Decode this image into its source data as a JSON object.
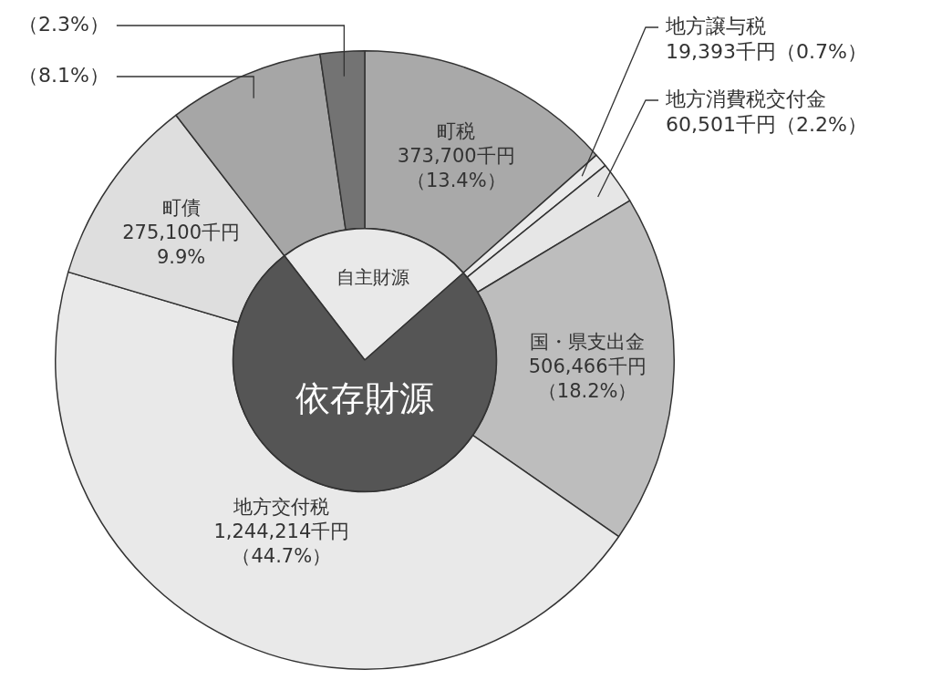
{
  "chart_data": [
    {
      "type": "donut",
      "categories": [
        "町税",
        "地方譲与税",
        "地方消費税交付金",
        "国・県支出金",
        "地方交付税",
        "町債",
        null,
        null
      ],
      "values": [
        13.4,
        0.7,
        2.2,
        18.2,
        44.7,
        9.9,
        8.1,
        2.3
      ],
      "colors": [
        "#a9a9a9",
        "#ebebeb",
        "#e6e6e6",
        "#bdbdbd",
        "#e9e9e9",
        "#dedede",
        "#a6a6a6",
        "#737373"
      ],
      "value_labels": [
        "373,700千円（13.4%）",
        "19,393千円（0.7%）",
        "60,501千円（2.2%）",
        "506,466千円（18.2%）",
        "1,244,214千円（44.7%）",
        "275,100千円 9.9%",
        "（8.1%）",
        "（2.3%）"
      ]
    },
    {
      "type": "pie",
      "categories": [
        "自主財源",
        "依存財源"
      ],
      "values": [
        23.8,
        75.7
      ],
      "colors": [
        "#e9e9e9",
        "#555555"
      ]
    }
  ]
}
